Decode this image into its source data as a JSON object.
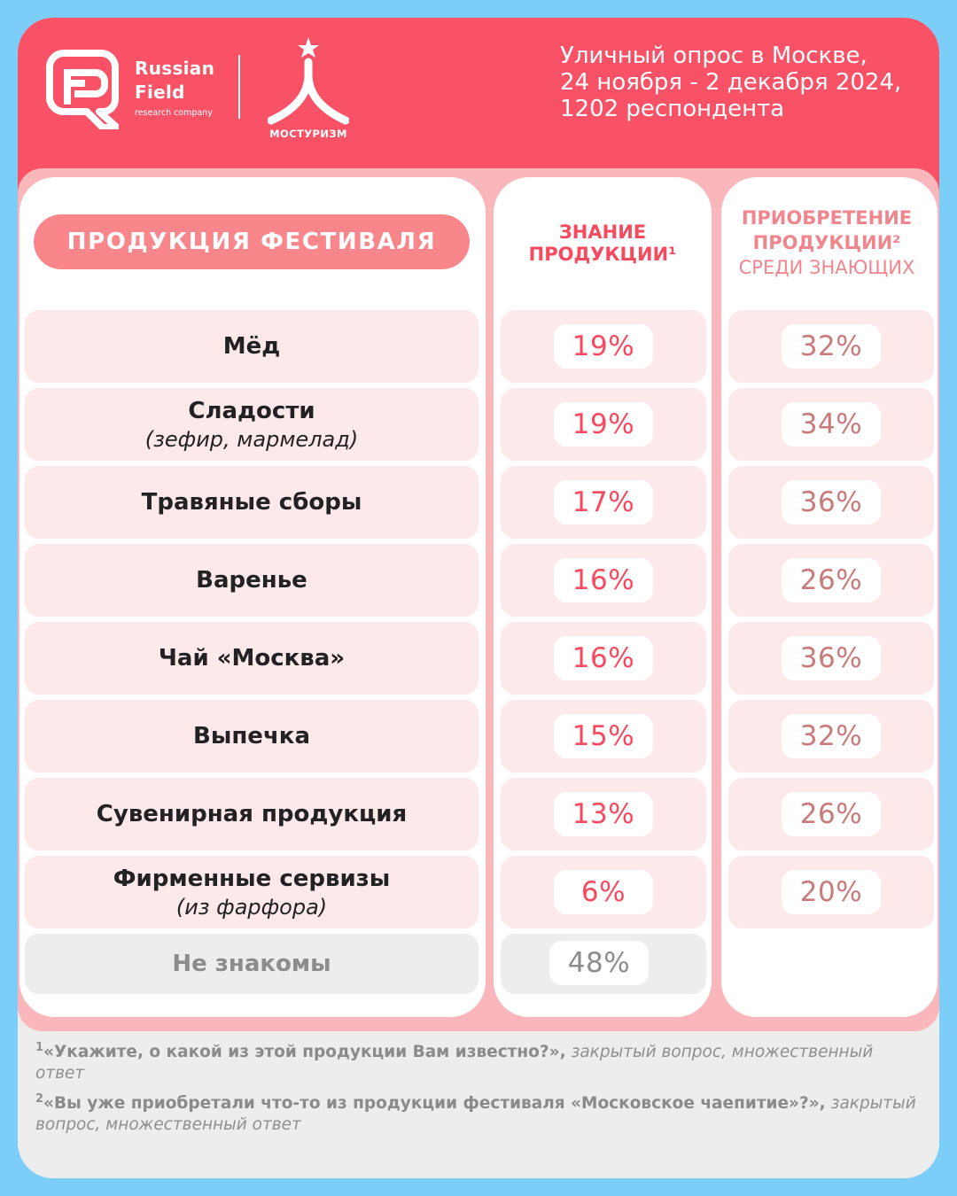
{
  "brand": {
    "rf_name_line1": "Russian",
    "rf_name_line2": "Field",
    "rf_sub": "research company",
    "partner": "МОСТУРИЗМ",
    "icons": [
      "russian-field-logo-icon",
      "mosturizm-logo-icon"
    ],
    "colors": {
      "header": "#f95266",
      "accent": "#f64a5e",
      "muted": "#c97a7a",
      "background": "#7ccdf8"
    }
  },
  "survey": {
    "line1": "Уличный опрос в Москве,",
    "line2": "24 ноября - 2 декабря 2024,",
    "line3": "1202 респондента"
  },
  "table": {
    "header_product": "ПРОДУКЦИЯ ФЕСТИВАЛЯ",
    "header_knowledge_line1": "ЗНАНИЕ",
    "header_knowledge_line2": "ПРОДУКЦИИ¹",
    "header_purchase_line1": "ПРИОБРЕТЕНИЕ",
    "header_purchase_line2": "ПРОДУКЦИИ²",
    "header_purchase_line3": "СРЕДИ ЗНАЮЩИХ",
    "rows": [
      {
        "label": "Мёд",
        "sub": "",
        "knowledge": "19%",
        "purchase": "32%"
      },
      {
        "label": "Сладости",
        "sub": "(зефир, мармелад)",
        "knowledge": "19%",
        "purchase": "34%"
      },
      {
        "label": "Травяные сборы",
        "sub": "",
        "knowledge": "17%",
        "purchase": "36%"
      },
      {
        "label": "Варенье",
        "sub": "",
        "knowledge": "16%",
        "purchase": "26%"
      },
      {
        "label": "Чай «Москва»",
        "sub": "",
        "knowledge": "16%",
        "purchase": "36%"
      },
      {
        "label": "Выпечка",
        "sub": "",
        "knowledge": "15%",
        "purchase": "32%"
      },
      {
        "label": "Сувенирная продукция",
        "sub": "",
        "knowledge": "13%",
        "purchase": "26%"
      },
      {
        "label": "Фирменные сервизы",
        "sub": "(из фарфора)",
        "knowledge": "6%",
        "purchase": "20%"
      }
    ],
    "unfamiliar": {
      "label": "Не знакомы",
      "knowledge": "48%"
    }
  },
  "footnotes": {
    "n1_mark": "1",
    "n1_question": "«Укажите, о какой из этой продукции Вам известно?»,",
    "n1_note": "закрытый вопрос, множественный ответ",
    "n2_mark": "2",
    "n2_question": "«Вы уже приобретали что-то из продукции фестиваля «Московское чаепитие»?»,",
    "n2_note": "закрытый вопрос, множественный ответ"
  }
}
